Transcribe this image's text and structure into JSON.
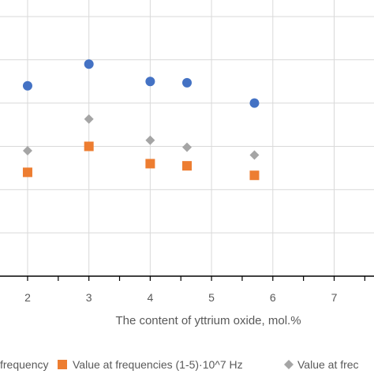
{
  "chart_data": {
    "type": "scatter",
    "title": "",
    "xlabel": "The content of yttrium oxide, mol.%",
    "ylabel": "",
    "xlim": [
      1.55,
      7.65
    ],
    "ylim": [
      0,
      6.2
    ],
    "x_ticks": [
      2,
      3,
      4,
      5,
      6,
      7
    ],
    "grid": true,
    "legend_position": "bottom",
    "series": [
      {
        "name": "frequency",
        "marker": "circle",
        "color": "#4472C4",
        "points": [
          [
            2,
            4.4
          ],
          [
            3,
            4.9
          ],
          [
            4,
            4.5
          ],
          [
            4.6,
            4.47
          ],
          [
            5.7,
            4.0
          ]
        ]
      },
      {
        "name": "Value at frequencies (1-5)·10^7 Hz",
        "marker": "square",
        "color": "#ED7D31",
        "points": [
          [
            2,
            2.4
          ],
          [
            3,
            3.0
          ],
          [
            4,
            2.6
          ],
          [
            4.6,
            2.55
          ],
          [
            5.7,
            2.33
          ]
        ]
      },
      {
        "name": "Value at frec",
        "marker": "diamond",
        "color": "#A5A5A5",
        "points": [
          [
            2,
            2.9
          ],
          [
            3,
            3.63
          ],
          [
            4,
            3.14
          ],
          [
            4.6,
            2.98
          ],
          [
            5.7,
            2.8
          ]
        ]
      }
    ]
  }
}
